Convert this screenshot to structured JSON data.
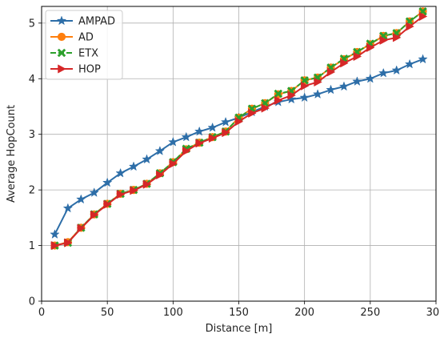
{
  "chart_data": {
    "type": "line",
    "xlabel": "Distance [m]",
    "ylabel": "Average HopCount",
    "xlim": [
      0,
      300
    ],
    "ylim": [
      0,
      5.3
    ],
    "xticks": [
      0,
      50,
      100,
      150,
      200,
      250,
      300
    ],
    "yticks": [
      0,
      1,
      2,
      3,
      4,
      5
    ],
    "grid": true,
    "legend_position": "top-left",
    "x": [
      10,
      20,
      30,
      40,
      50,
      60,
      70,
      80,
      90,
      100,
      110,
      120,
      130,
      140,
      150,
      160,
      170,
      180,
      190,
      200,
      210,
      220,
      230,
      240,
      250,
      260,
      270,
      280,
      290
    ],
    "series": [
      {
        "name": "AMPAD",
        "color": "#2d6ea8",
        "marker": "star",
        "dash": "solid",
        "values": [
          1.2,
          1.67,
          1.83,
          1.95,
          2.13,
          2.3,
          2.42,
          2.55,
          2.7,
          2.86,
          2.95,
          3.05,
          3.12,
          3.22,
          3.3,
          3.4,
          3.5,
          3.58,
          3.63,
          3.66,
          3.72,
          3.8,
          3.86,
          3.95,
          4.0,
          4.1,
          4.15,
          4.26,
          4.35
        ]
      },
      {
        "name": "AD",
        "color": "#ff7f0e",
        "marker": "circle",
        "dash": "solid",
        "values": [
          1.0,
          1.06,
          1.32,
          1.56,
          1.75,
          1.93,
          2.0,
          2.11,
          2.3,
          2.5,
          2.73,
          2.85,
          2.95,
          3.05,
          3.3,
          3.46,
          3.56,
          3.72,
          3.78,
          3.97,
          4.02,
          4.2,
          4.35,
          4.48,
          4.62,
          4.77,
          4.82,
          5.03,
          5.21
        ]
      },
      {
        "name": "ETX",
        "color": "#2ca02c",
        "marker": "x",
        "dash": "dashed",
        "values": [
          1.0,
          1.05,
          1.32,
          1.56,
          1.75,
          1.93,
          2.0,
          2.11,
          2.3,
          2.5,
          2.74,
          2.85,
          2.95,
          3.05,
          3.3,
          3.46,
          3.56,
          3.73,
          3.78,
          3.97,
          4.02,
          4.2,
          4.36,
          4.48,
          4.63,
          4.77,
          4.82,
          5.03,
          5.21
        ]
      },
      {
        "name": "HOP",
        "color": "#d62728",
        "marker": "triangle-right",
        "dash": "solid",
        "values": [
          1.0,
          1.05,
          1.31,
          1.55,
          1.74,
          1.92,
          1.99,
          2.1,
          2.27,
          2.47,
          2.7,
          2.84,
          2.93,
          3.03,
          3.23,
          3.38,
          3.47,
          3.61,
          3.7,
          3.87,
          3.94,
          4.12,
          4.28,
          4.4,
          4.56,
          4.69,
          4.74,
          4.94,
          5.12
        ]
      }
    ]
  }
}
